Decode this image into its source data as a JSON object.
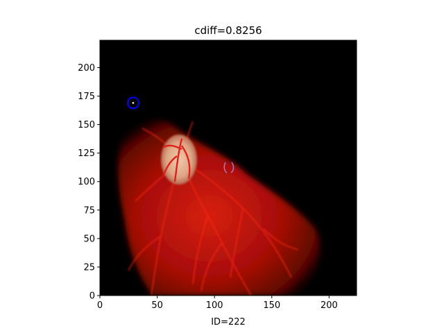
{
  "figure": {
    "title": "cdiff=0.8256",
    "xlabel": "ID=222",
    "xlim": [
      0,
      224
    ],
    "ylim": [
      0,
      224
    ],
    "xticks": [
      "0",
      "50",
      "100",
      "150",
      "200"
    ],
    "yticks": [
      "0",
      "25",
      "50",
      "75",
      "100",
      "125",
      "150",
      "175",
      "200"
    ],
    "marker": {
      "x": 29,
      "y": 169,
      "color": "#0000ff"
    },
    "background_color": "#000000",
    "tissue_color": "#c81008",
    "disc_color": "#e8c0a0"
  }
}
